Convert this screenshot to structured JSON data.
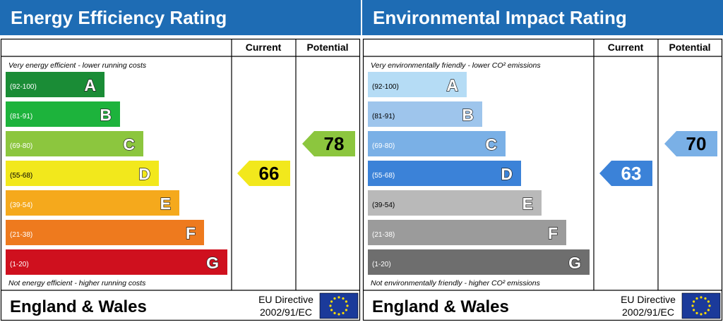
{
  "panels": [
    {
      "title": "Energy Efficiency Rating",
      "columns": [
        "Current",
        "Potential"
      ],
      "top_note": "Very energy efficient - lower running costs",
      "bottom_note": "Not energy efficient - higher running costs",
      "bands": [
        {
          "range": "(92-100)",
          "letter": "A",
          "color": "#1a8c36"
        },
        {
          "range": "(81-91)",
          "letter": "B",
          "color": "#1db33c"
        },
        {
          "range": "(69-80)",
          "letter": "C",
          "color": "#8cc63e"
        },
        {
          "range": "(55-68)",
          "letter": "D",
          "color": "#f2e81c"
        },
        {
          "range": "(39-54)",
          "letter": "E",
          "color": "#f5a91c"
        },
        {
          "range": "(21-38)",
          "letter": "F",
          "color": "#ee7a1e"
        },
        {
          "range": "(1-20)",
          "letter": "G",
          "color": "#cf101e"
        }
      ],
      "current": 66,
      "potential": 78,
      "footer": {
        "region": "England & Wales",
        "directive": "EU Directive",
        "directive_number": "2002/91/EC"
      }
    },
    {
      "title": "Environmental Impact Rating",
      "columns": [
        "Current",
        "Potential"
      ],
      "top_note": "Very environmentally friendly - lower CO² emissions",
      "bottom_note": "Not environmentally friendly - higher CO² emissions",
      "bands": [
        {
          "range": "(92-100)",
          "letter": "A",
          "color": "#b5dcf5"
        },
        {
          "range": "(81-91)",
          "letter": "B",
          "color": "#9ec5ec"
        },
        {
          "range": "(69-80)",
          "letter": "C",
          "color": "#7ab0e6"
        },
        {
          "range": "(55-68)",
          "letter": "D",
          "color": "#3b82d8"
        },
        {
          "range": "(39-54)",
          "letter": "E",
          "color": "#b9b9b9"
        },
        {
          "range": "(21-38)",
          "letter": "F",
          "color": "#9b9b9b"
        },
        {
          "range": "(1-20)",
          "letter": "G",
          "color": "#6e6e6e"
        }
      ],
      "current": 63,
      "potential": 70,
      "footer": {
        "region": "England & Wales",
        "directive": "EU Directive",
        "directive_number": "2002/91/EC"
      }
    }
  ]
}
